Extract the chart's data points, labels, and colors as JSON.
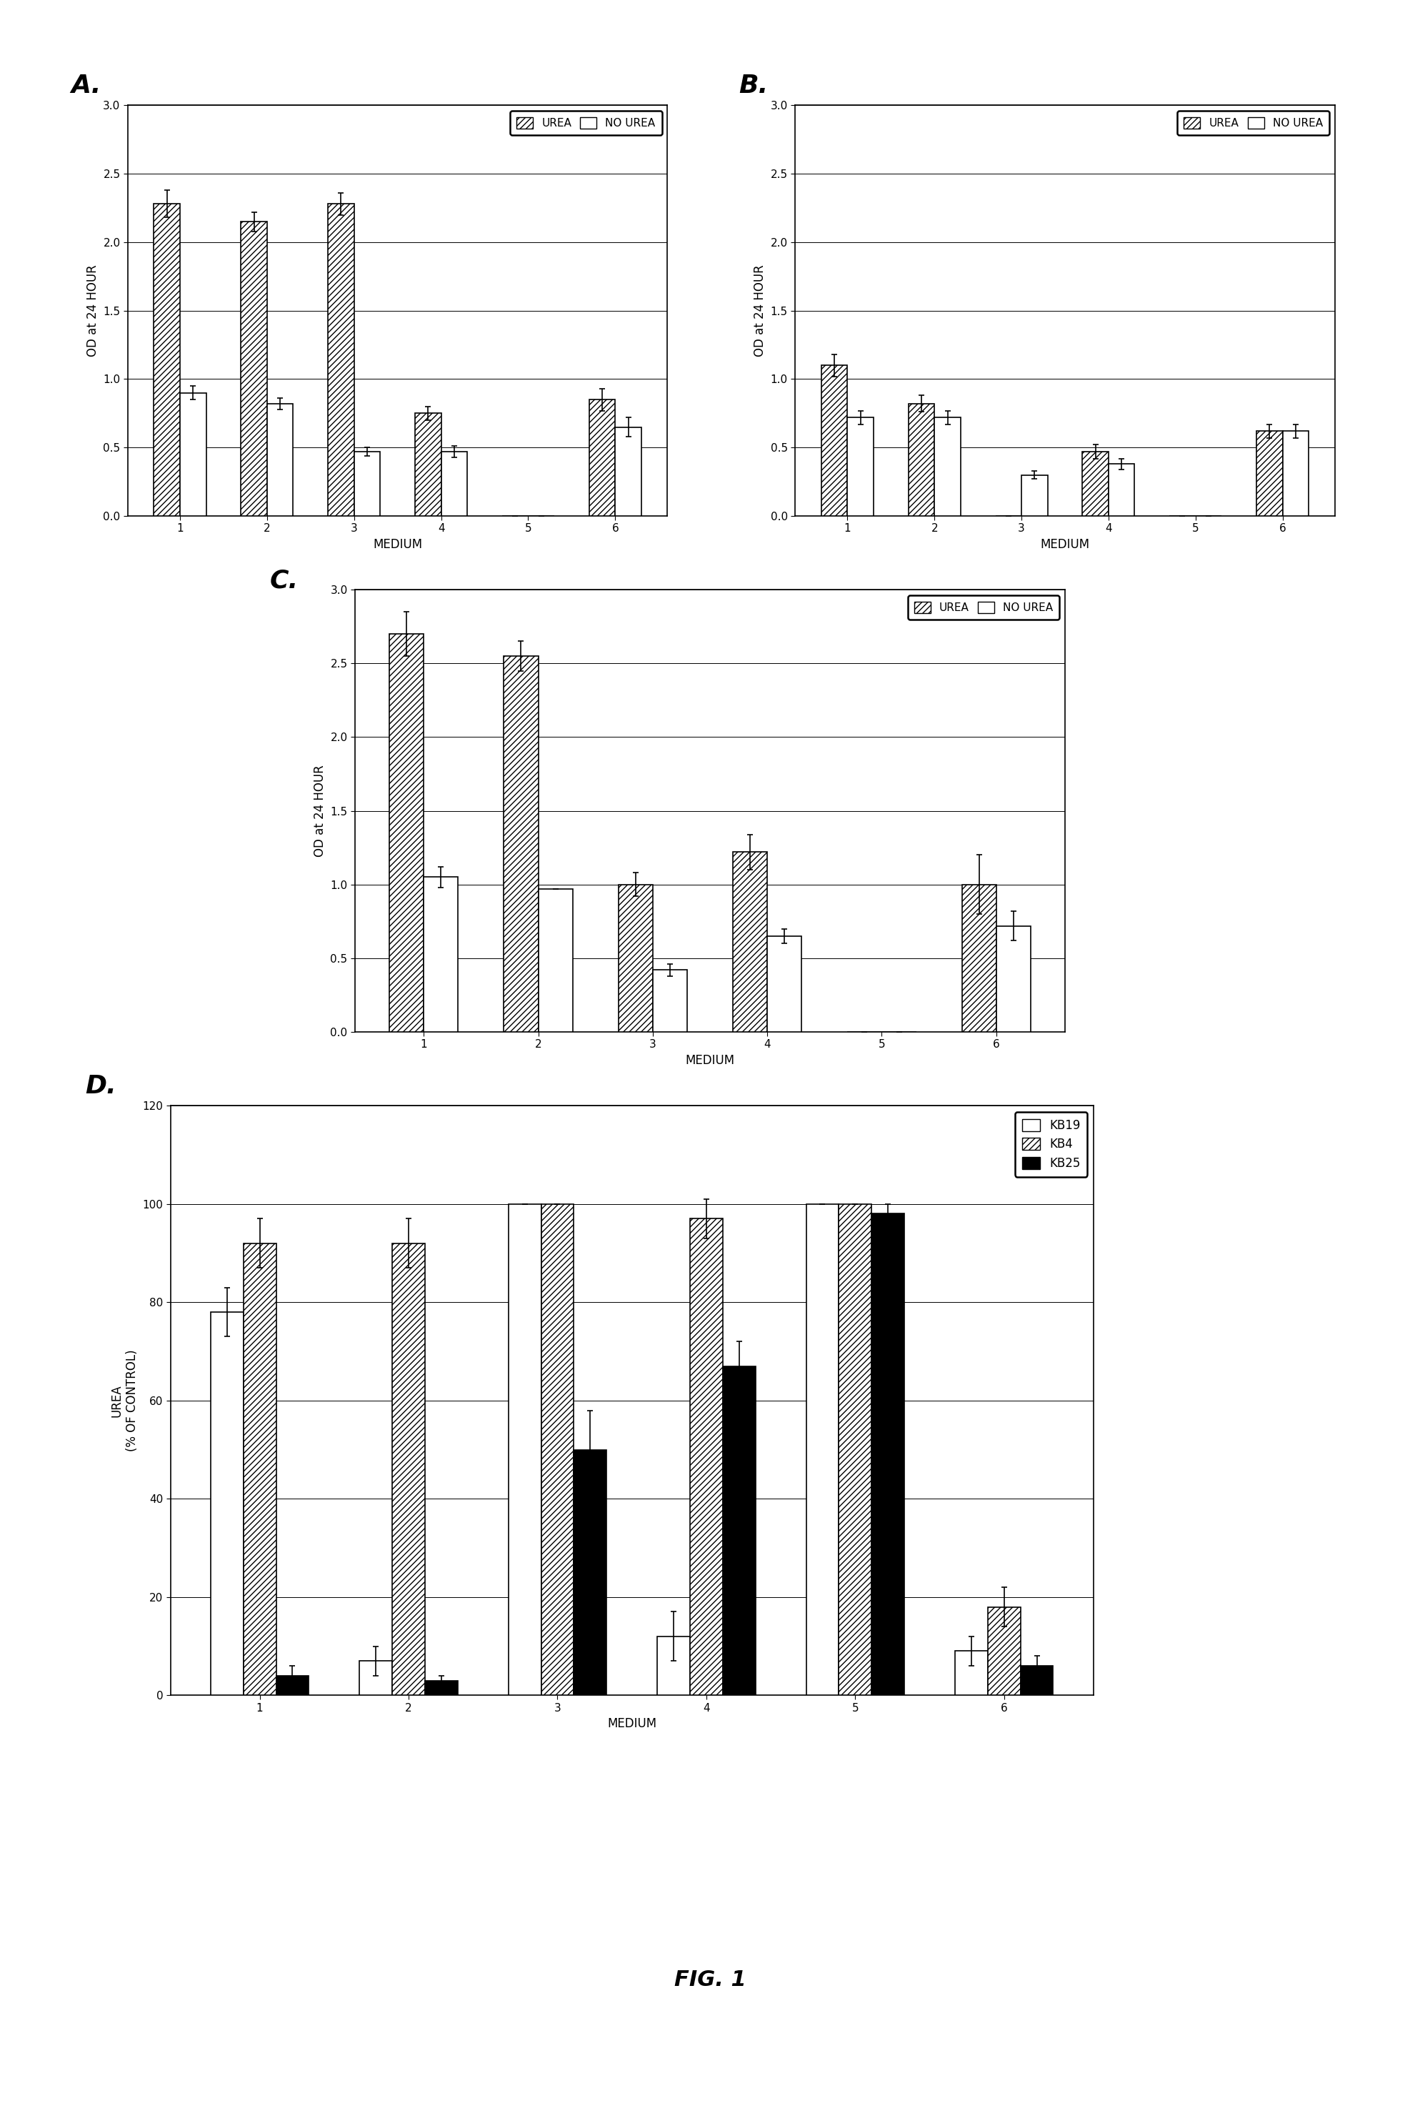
{
  "panel_A": {
    "label": "A.",
    "categories": [
      1,
      2,
      3,
      4,
      5,
      6
    ],
    "urea": [
      2.28,
      2.15,
      2.28,
      0.75,
      0.0,
      0.85
    ],
    "no_urea": [
      0.9,
      0.82,
      0.47,
      0.47,
      0.0,
      0.65
    ],
    "urea_err": [
      0.1,
      0.07,
      0.08,
      0.05,
      0.0,
      0.08
    ],
    "no_urea_err": [
      0.05,
      0.04,
      0.03,
      0.04,
      0.0,
      0.07
    ],
    "ylim": [
      0.0,
      3.0
    ],
    "yticks": [
      0.0,
      0.5,
      1.0,
      1.5,
      2.0,
      2.5,
      3.0
    ],
    "ylabel": "OD at 24 HOUR",
    "xlabel": "MEDIUM"
  },
  "panel_B": {
    "label": "B.",
    "categories": [
      1,
      2,
      3,
      4,
      5,
      6
    ],
    "urea": [
      1.1,
      0.82,
      0.0,
      0.47,
      0.0,
      0.62
    ],
    "no_urea": [
      0.72,
      0.72,
      0.3,
      0.38,
      0.0,
      0.62
    ],
    "urea_err": [
      0.08,
      0.06,
      0.0,
      0.05,
      0.0,
      0.05
    ],
    "no_urea_err": [
      0.05,
      0.05,
      0.03,
      0.04,
      0.0,
      0.05
    ],
    "ylim": [
      0.0,
      3.0
    ],
    "yticks": [
      0.0,
      0.5,
      1.0,
      1.5,
      2.0,
      2.5,
      3.0
    ],
    "ylabel": "OD at 24 HOUR",
    "xlabel": "MEDIUM"
  },
  "panel_C": {
    "label": "C.",
    "categories": [
      1,
      2,
      3,
      4,
      5,
      6
    ],
    "urea": [
      2.7,
      2.55,
      1.0,
      1.22,
      0.0,
      1.0
    ],
    "no_urea": [
      1.05,
      0.97,
      0.42,
      0.65,
      0.0,
      0.72
    ],
    "urea_err": [
      0.15,
      0.1,
      0.08,
      0.12,
      0.0,
      0.2
    ],
    "no_urea_err": [
      0.07,
      0.0,
      0.04,
      0.05,
      0.0,
      0.1
    ],
    "ylim": [
      0.0,
      3.0
    ],
    "yticks": [
      0.0,
      0.5,
      1.0,
      1.5,
      2.0,
      2.5,
      3.0
    ],
    "ylabel": "OD at 24 HOUR",
    "xlabel": "MEDIUM"
  },
  "panel_D": {
    "label": "D.",
    "categories": [
      1,
      2,
      3,
      4,
      5,
      6
    ],
    "kb19": [
      78,
      7,
      100,
      12,
      100,
      9
    ],
    "kb4": [
      92,
      92,
      100,
      97,
      100,
      18
    ],
    "kb25": [
      4,
      3,
      50,
      67,
      98,
      6
    ],
    "kb19_err": [
      5,
      3,
      0,
      5,
      0,
      3
    ],
    "kb4_err": [
      5,
      5,
      0,
      4,
      0,
      4
    ],
    "kb25_err": [
      2,
      1,
      8,
      5,
      2,
      2
    ],
    "ylim": [
      0,
      120
    ],
    "yticks": [
      0,
      20,
      40,
      60,
      80,
      100,
      120
    ],
    "ylabel": "UREA\n(% OF CONTROL)",
    "xlabel": "MEDIUM"
  },
  "hatch_urea": "////",
  "hatch_no_urea": "",
  "bar_edge": "#000000",
  "fig_label_fontsize": 26,
  "axis_fontsize": 12,
  "tick_fontsize": 11,
  "legend_fontsize": 11,
  "fig_title": "FIG. 1"
}
